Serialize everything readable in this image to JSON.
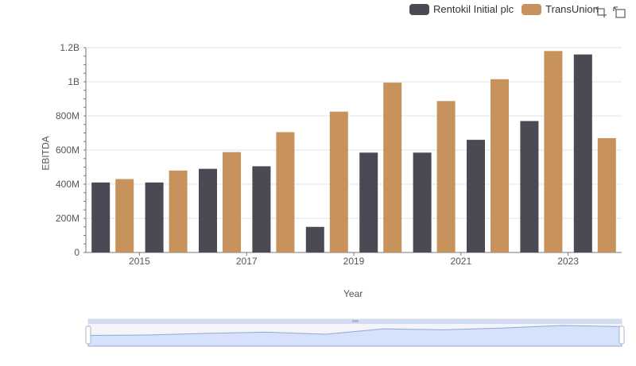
{
  "chart_data": {
    "type": "bar",
    "x": [
      2014,
      2015,
      2016,
      2017,
      2018,
      2019,
      2020,
      2021,
      2022,
      2023
    ],
    "x_tick_labels": [
      "2015",
      "2017",
      "2019",
      "2021",
      "2023"
    ],
    "series": [
      {
        "name": "Rentokil Initial plc",
        "color": "#4a4a55",
        "values": [
          410000000,
          410000000,
          490000000,
          505000000,
          150000000,
          585000000,
          585000000,
          660000000,
          770000000,
          1160000000
        ]
      },
      {
        "name": "TransUnion",
        "color": "#c8925c",
        "values": [
          430000000,
          480000000,
          588000000,
          705000000,
          825000000,
          995000000,
          887000000,
          1015000000,
          1180000000,
          670000000
        ]
      }
    ],
    "xlabel": "Year",
    "ylabel": "EBITDA",
    "ylim": [
      0,
      1200000000
    ],
    "y_ticks": [
      {
        "value": 0,
        "label": "0"
      },
      {
        "value": 200000000,
        "label": "200M"
      },
      {
        "value": 400000000,
        "label": "400M"
      },
      {
        "value": 600000000,
        "label": "600M"
      },
      {
        "value": 800000000,
        "label": "800M"
      },
      {
        "value": 1000000000,
        "label": "1B"
      },
      {
        "value": 1200000000,
        "label": "1.2B"
      }
    ],
    "grid": true,
    "legend_position": "top-right"
  },
  "toolbox": {
    "zoom_icon": "zoom-select-icon",
    "reset_icon": "zoom-reset-icon"
  },
  "data_zoom": {
    "range_start_percent": 0,
    "range_end_percent": 100,
    "handle_color": "#8fa8d8",
    "fill_color": "#d6e2fb"
  }
}
